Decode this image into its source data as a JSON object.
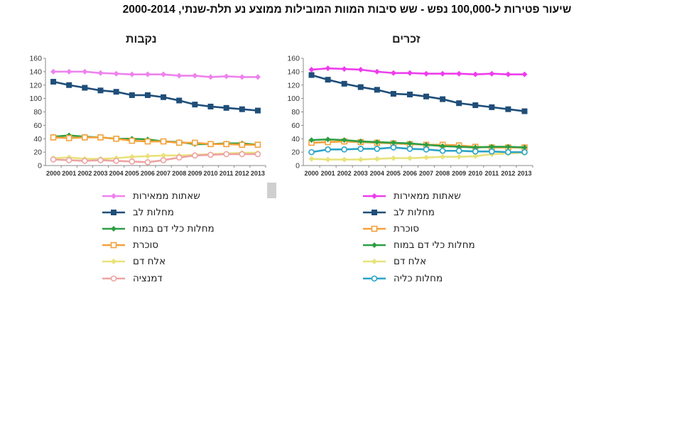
{
  "page_title": "שיעור פטירות ל-100,000 נפש - שש סיבות המוות המובילות ממוצע נע תלת-שנתי, 2000-2014",
  "chart_data": [
    {
      "type": "line",
      "title": "נקבות",
      "x": [
        "2000",
        "2001",
        "2002",
        "2003",
        "2004",
        "2005",
        "2006",
        "2007",
        "2008",
        "2009",
        "2010",
        "2011",
        "2012",
        "2013"
      ],
      "ylim": [
        0,
        160
      ],
      "yticks": [
        0,
        20,
        40,
        60,
        80,
        100,
        120,
        140,
        160
      ],
      "series": [
        {
          "name": "שאתות ממאירות",
          "color": "#ee82ee",
          "marker": "diamond",
          "values": [
            140,
            140,
            140,
            138,
            137,
            136,
            136,
            136,
            134,
            134,
            132,
            133,
            132,
            132
          ]
        },
        {
          "name": "מחלות לב",
          "color": "#1f4e79",
          "marker": "square",
          "values": [
            125,
            120,
            116,
            112,
            110,
            105,
            105,
            102,
            97,
            91,
            88,
            86,
            84,
            82
          ]
        },
        {
          "name": "מחלות כלי דם במוח",
          "color": "#2e9e44",
          "marker": "diamond",
          "values": [
            43,
            45,
            43,
            42,
            40,
            40,
            39,
            36,
            35,
            32,
            32,
            33,
            33,
            31
          ]
        },
        {
          "name": "סוכרת",
          "color": "#f4a13a",
          "marker": "square-open",
          "values": [
            42,
            41,
            42,
            42,
            40,
            37,
            36,
            36,
            34,
            34,
            32,
            32,
            31,
            31
          ]
        },
        {
          "name": "אלח דם",
          "color": "#e8e27a",
          "marker": "diamond",
          "values": [
            11,
            12,
            10,
            10,
            11,
            13,
            14,
            15,
            15,
            16,
            17,
            18,
            19,
            19
          ]
        },
        {
          "name": "דמנציה",
          "color": "#eea3a3",
          "marker": "circle-open",
          "values": [
            9,
            8,
            7,
            8,
            7,
            6,
            5,
            8,
            12,
            15,
            16,
            17,
            17,
            17
          ]
        }
      ]
    },
    {
      "type": "line",
      "title": "זכרים",
      "x": [
        "2000",
        "2001",
        "2002",
        "2003",
        "2004",
        "2005",
        "2006",
        "2007",
        "2008",
        "2009",
        "2010",
        "2011",
        "2012",
        "2013"
      ],
      "ylim": [
        0,
        160
      ],
      "yticks": [
        0,
        20,
        40,
        60,
        80,
        100,
        120,
        140,
        160
      ],
      "series": [
        {
          "name": "שאתות ממאירות",
          "color": "#ee3cee",
          "marker": "diamond",
          "values": [
            143,
            145,
            144,
            143,
            140,
            138,
            138,
            137,
            137,
            137,
            136,
            137,
            136,
            136
          ]
        },
        {
          "name": "מחלות לב",
          "color": "#1f4e79",
          "marker": "square",
          "values": [
            135,
            128,
            122,
            117,
            113,
            107,
            106,
            103,
            99,
            93,
            90,
            87,
            84,
            81
          ]
        },
        {
          "name": "סוכרת",
          "color": "#f4a13a",
          "marker": "square-open",
          "values": [
            34,
            35,
            36,
            35,
            34,
            33,
            32,
            31,
            31,
            30,
            28,
            27,
            27,
            27
          ]
        },
        {
          "name": "מחלות כלי דם במוח",
          "color": "#2e9e44",
          "marker": "diamond",
          "values": [
            38,
            39,
            38,
            36,
            35,
            34,
            33,
            31,
            29,
            28,
            27,
            28,
            28,
            27
          ]
        },
        {
          "name": "אלח דם",
          "color": "#e8e27a",
          "marker": "diamond",
          "values": [
            10,
            9,
            9,
            9,
            10,
            11,
            11,
            12,
            13,
            13,
            14,
            17,
            18,
            19
          ]
        },
        {
          "name": "מחלות כליה",
          "color": "#29a3c6",
          "marker": "circle-open",
          "values": [
            20,
            24,
            24,
            25,
            25,
            27,
            25,
            24,
            22,
            22,
            21,
            21,
            20,
            20
          ]
        }
      ]
    }
  ]
}
